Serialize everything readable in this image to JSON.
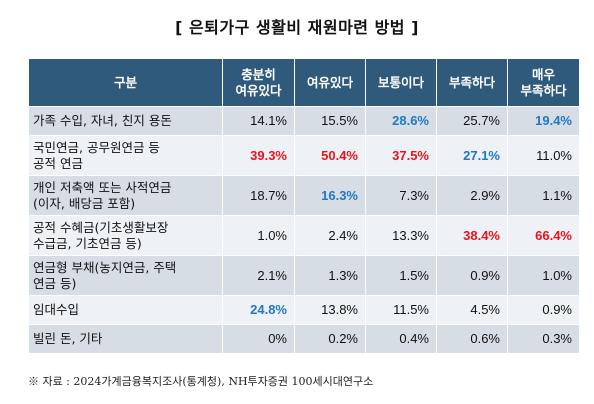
{
  "title": "[ 은퇴가구 생활비 재원마련 방법 ]",
  "table": {
    "headers": {
      "category": "구분",
      "c1_line1": "충분히",
      "c1_line2": "여유있다",
      "c2": "여유있다",
      "c3": "보통이다",
      "c4": "부족하다",
      "c5_line1": "매우",
      "c5_line2": "부족하다"
    },
    "rows": [
      {
        "label": "가족 수입, 자녀, 친지 용돈",
        "values": [
          "14.1%",
          "15.5%",
          "28.6%",
          "25.7%",
          "19.4%"
        ]
      },
      {
        "label_line1": "국민연금, 공무원연금 등",
        "label_line2": "공적 연금",
        "values": [
          "39.3%",
          "50.4%",
          "37.5%",
          "27.1%",
          "11.0%"
        ]
      },
      {
        "label_line1": "개인 저축액 또는 사적연금",
        "label_line2": "(이자, 배당금 포함)",
        "values": [
          "18.7%",
          "16.3%",
          "7.3%",
          "2.9%",
          "1.1%"
        ]
      },
      {
        "label_line1": "공적 수혜금(기초생활보장",
        "label_line2": "수급금, 기초연금 등)",
        "values": [
          "1.0%",
          "2.4%",
          "13.3%",
          "38.4%",
          "66.4%"
        ]
      },
      {
        "label_line1": "연금형 부채(농지연금, 주택",
        "label_line2": "연금 등)",
        "values": [
          "2.1%",
          "1.3%",
          "1.5%",
          "0.9%",
          "1.0%"
        ]
      },
      {
        "label": "임대수입",
        "values": [
          "24.8%",
          "13.8%",
          "11.5%",
          "4.5%",
          "0.9%"
        ]
      },
      {
        "label": "빌린 돈, 기타",
        "values": [
          "0%",
          "0.2%",
          "0.4%",
          "0.6%",
          "0.3%"
        ]
      }
    ]
  },
  "colors": {
    "header_bg": "#2f5a7c",
    "highlight_red": "#e8141d",
    "highlight_blue": "#1f78c8"
  },
  "source": "※ 자료 : 2024가계금융복지조사(통계청), NH투자증권 100세시대연구소"
}
